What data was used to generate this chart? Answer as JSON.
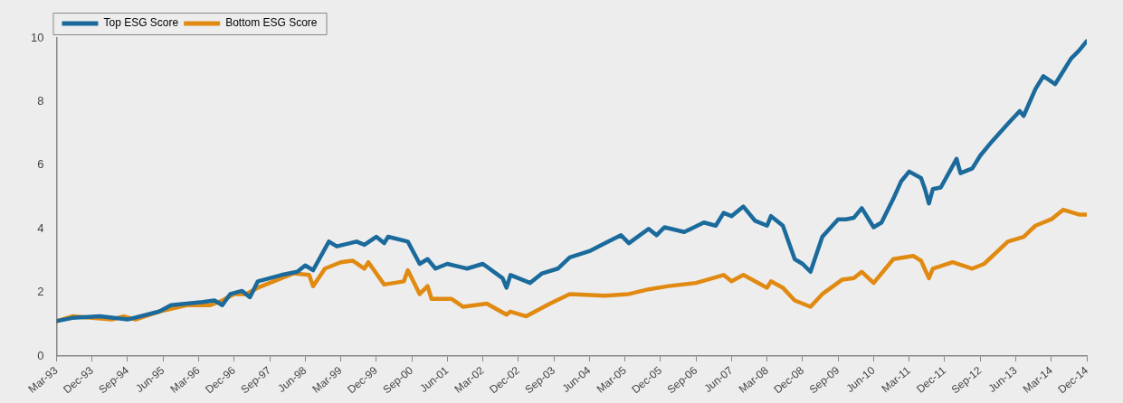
{
  "chart_data": {
    "type": "line",
    "legend": "top left",
    "grid": false,
    "marker": "none",
    "line_style": "solid",
    "ylim": [
      0,
      10
    ],
    "yticks": [
      0,
      2,
      4,
      6,
      8,
      10
    ],
    "xlim": [
      "1993-03",
      "2014-12"
    ],
    "xticks": [
      {
        "value": "1993-03",
        "label": "Mar-93"
      },
      {
        "value": "1993-12",
        "label": "Dec-93"
      },
      {
        "value": "1994-09",
        "label": "Sep-94"
      },
      {
        "value": "1995-06",
        "label": "Jun-95"
      },
      {
        "value": "1996-03",
        "label": "Mar-96"
      },
      {
        "value": "1996-12",
        "label": "Dec-96"
      },
      {
        "value": "1997-09",
        "label": "Sep-97"
      },
      {
        "value": "1998-06",
        "label": "Jun-98"
      },
      {
        "value": "1999-03",
        "label": "Mar-99"
      },
      {
        "value": "1999-12",
        "label": "Dec-99"
      },
      {
        "value": "2000-09",
        "label": "Sep-00"
      },
      {
        "value": "2001-06",
        "label": "Jun-01"
      },
      {
        "value": "2002-03",
        "label": "Mar-02"
      },
      {
        "value": "2002-12",
        "label": "Dec-02"
      },
      {
        "value": "2003-09",
        "label": "Sep-03"
      },
      {
        "value": "2004-06",
        "label": "Jun-04"
      },
      {
        "value": "2005-03",
        "label": "Mar-05"
      },
      {
        "value": "2005-12",
        "label": "Dec-05"
      },
      {
        "value": "2006-09",
        "label": "Sep-06"
      },
      {
        "value": "2007-06",
        "label": "Jun-07"
      },
      {
        "value": "2008-03",
        "label": "Mar-08"
      },
      {
        "value": "2008-12",
        "label": "Dec-08"
      },
      {
        "value": "2009-09",
        "label": "Sep-09"
      },
      {
        "value": "2010-06",
        "label": "Jun-10"
      },
      {
        "value": "2011-03",
        "label": "Mar-11"
      },
      {
        "value": "2011-12",
        "label": "Dec-11"
      },
      {
        "value": "2012-09",
        "label": "Sep-12"
      },
      {
        "value": "2013-06",
        "label": "Jun-13"
      },
      {
        "value": "2014-03",
        "label": "Mar-14"
      },
      {
        "value": "2014-12",
        "label": "Dec-14"
      }
    ],
    "series": [
      {
        "name": "Top ESG Score",
        "color": "#1b6a9c",
        "x": [
          "1993-03",
          "1993-07",
          "1994-02",
          "1994-09",
          "1995-05",
          "1995-08",
          "1996-04",
          "1996-07",
          "1996-09",
          "1996-11",
          "1997-02",
          "1997-04",
          "1997-06",
          "1997-12",
          "1998-04",
          "1998-06",
          "1998-08",
          "1998-12",
          "1999-02",
          "1999-07",
          "1999-09",
          "1999-12",
          "2000-02",
          "2000-03",
          "2000-08",
          "2000-11",
          "2001-01",
          "2001-03",
          "2001-06",
          "2001-11",
          "2002-03",
          "2002-08",
          "2002-09",
          "2002-10",
          "2003-01",
          "2003-03",
          "2003-06",
          "2003-10",
          "2004-01",
          "2004-06",
          "2004-10",
          "2005-02",
          "2005-04",
          "2005-09",
          "2005-11",
          "2006-01",
          "2006-06",
          "2006-11",
          "2007-02",
          "2007-04",
          "2007-06",
          "2007-09",
          "2007-12",
          "2008-03",
          "2008-04",
          "2008-07",
          "2008-10",
          "2008-12",
          "2009-02",
          "2009-05",
          "2009-09",
          "2009-11",
          "2010-01",
          "2010-03",
          "2010-06",
          "2010-08",
          "2010-11",
          "2011-01",
          "2011-03",
          "2011-06",
          "2011-07",
          "2011-08",
          "2011-09",
          "2011-11",
          "2012-03",
          "2012-04",
          "2012-07",
          "2012-09",
          "2012-12",
          "2013-04",
          "2013-07",
          "2013-08",
          "2013-11",
          "2014-01",
          "2014-04",
          "2014-06",
          "2014-08",
          "2014-10",
          "2014-12"
        ],
        "values": [
          1.1,
          1.2,
          1.25,
          1.15,
          1.4,
          1.6,
          1.7,
          1.75,
          1.6,
          1.95,
          2.05,
          1.85,
          2.35,
          2.55,
          2.65,
          2.85,
          2.7,
          3.6,
          3.45,
          3.6,
          3.5,
          3.75,
          3.55,
          3.75,
          3.6,
          2.9,
          3.05,
          2.75,
          2.9,
          2.75,
          2.9,
          2.45,
          2.15,
          2.55,
          2.4,
          2.3,
          2.6,
          2.75,
          3.1,
          3.3,
          3.55,
          3.8,
          3.55,
          4.0,
          3.8,
          4.05,
          3.9,
          4.2,
          4.1,
          4.5,
          4.4,
          4.7,
          4.25,
          4.1,
          4.4,
          4.1,
          3.05,
          2.9,
          2.65,
          3.75,
          4.3,
          4.3,
          4.35,
          4.65,
          4.05,
          4.2,
          4.95,
          5.5,
          5.8,
          5.6,
          5.25,
          4.8,
          5.25,
          5.3,
          6.2,
          5.75,
          5.9,
          6.3,
          6.75,
          7.3,
          7.7,
          7.55,
          8.4,
          8.8,
          8.55,
          8.95,
          9.35,
          9.6,
          9.9
        ]
      },
      {
        "name": "Bottom ESG Score",
        "color": "#e08a12",
        "x": [
          "1993-03",
          "1993-07",
          "1994-05",
          "1994-08",
          "1994-11",
          "1995-05",
          "1995-12",
          "1996-06",
          "1996-09",
          "1996-12",
          "1997-03",
          "1997-06",
          "1997-12",
          "1998-03",
          "1998-07",
          "1998-08",
          "1998-11",
          "1999-03",
          "1999-06",
          "1999-09",
          "1999-10",
          "2000-02",
          "2000-07",
          "2000-08",
          "2000-11",
          "2001-01",
          "2001-02",
          "2001-07",
          "2001-10",
          "2002-04",
          "2002-09",
          "2002-10",
          "2003-02",
          "2003-08",
          "2004-01",
          "2004-10",
          "2005-04",
          "2005-09",
          "2006-02",
          "2006-09",
          "2007-04",
          "2007-06",
          "2007-09",
          "2008-03",
          "2008-04",
          "2008-07",
          "2008-10",
          "2009-02",
          "2009-05",
          "2009-10",
          "2010-01",
          "2010-03",
          "2010-06",
          "2010-11",
          "2011-04",
          "2011-06",
          "2011-08",
          "2011-09",
          "2012-02",
          "2012-07",
          "2012-10",
          "2013-04",
          "2013-08",
          "2013-11",
          "2014-03",
          "2014-06",
          "2014-10",
          "2014-12"
        ],
        "values": [
          1.1,
          1.25,
          1.15,
          1.25,
          1.15,
          1.4,
          1.6,
          1.6,
          1.75,
          1.95,
          1.95,
          2.15,
          2.45,
          2.6,
          2.55,
          2.2,
          2.75,
          2.95,
          3.0,
          2.75,
          2.95,
          2.25,
          2.35,
          2.7,
          1.95,
          2.2,
          1.8,
          1.8,
          1.55,
          1.65,
          1.3,
          1.4,
          1.25,
          1.65,
          1.95,
          1.9,
          1.95,
          2.1,
          2.2,
          2.3,
          2.55,
          2.35,
          2.55,
          2.15,
          2.35,
          2.15,
          1.75,
          1.55,
          1.95,
          2.4,
          2.45,
          2.65,
          2.3,
          3.05,
          3.15,
          3.0,
          2.45,
          2.75,
          2.95,
          2.75,
          2.9,
          3.6,
          3.75,
          4.1,
          4.3,
          4.6,
          4.45,
          4.45
        ]
      }
    ]
  }
}
